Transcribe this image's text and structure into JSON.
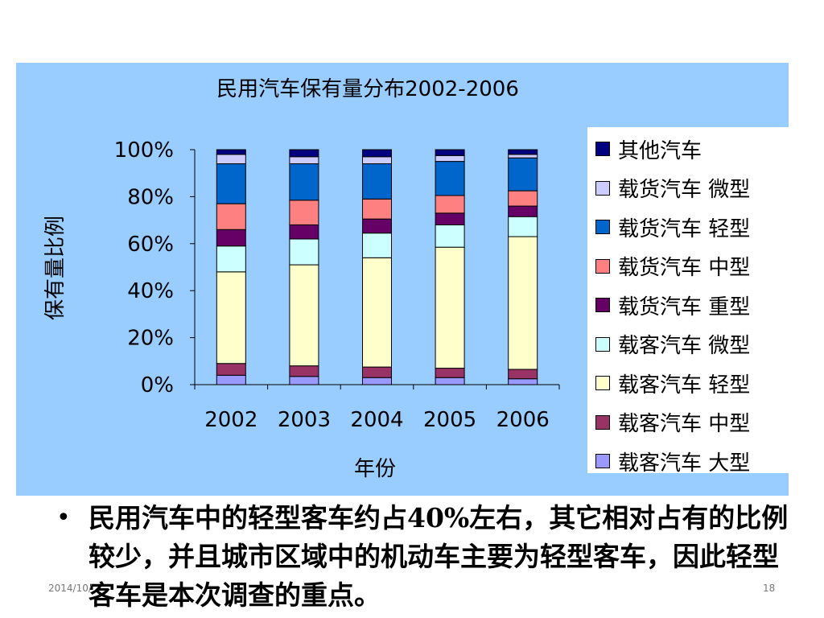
{
  "chart_data": {
    "type": "bar",
    "stacked": "percent",
    "title": "民用汽车保有量分布2002-2006",
    "xlabel": "年份",
    "ylabel": "保有量比例",
    "categories": [
      "2002",
      "2003",
      "2004",
      "2005",
      "2006"
    ],
    "ylim": [
      0,
      100
    ],
    "yticks": [
      "0%",
      "20%",
      "40%",
      "60%",
      "80%",
      "100%"
    ],
    "legend_position": "right",
    "series": [
      {
        "name": "载客汽车 大型",
        "color": "#9999ff",
        "values": [
          4,
          3.5,
          3,
          3,
          2.5
        ]
      },
      {
        "name": "载客汽车 中型",
        "color": "#993366",
        "values": [
          5,
          4.5,
          4.5,
          4,
          4
        ]
      },
      {
        "name": "载客汽车 轻型",
        "color": "#ffffcc",
        "values": [
          39,
          43,
          46.5,
          51.5,
          56.5
        ]
      },
      {
        "name": "载客汽车 微型",
        "color": "#ccffff",
        "values": [
          11,
          11,
          10.5,
          9.5,
          8.5
        ]
      },
      {
        "name": "载货汽车 重型",
        "color": "#660066",
        "values": [
          7,
          6,
          6,
          5,
          4.5
        ]
      },
      {
        "name": "载货汽车 中型",
        "color": "#ff8080",
        "values": [
          11,
          10.5,
          8.5,
          7.5,
          6.5
        ]
      },
      {
        "name": "载货汽车 轻型",
        "color": "#0066cc",
        "values": [
          17,
          15.5,
          15,
          14.5,
          14
        ]
      },
      {
        "name": "载货汽车 微型",
        "color": "#ccccff",
        "values": [
          4,
          3,
          3,
          2.5,
          1.5
        ]
      },
      {
        "name": "其他汽车",
        "color": "#000080",
        "values": [
          2,
          3,
          3,
          2.5,
          2
        ]
      }
    ]
  },
  "colors": {
    "panel_background": "#99ccff"
  },
  "bullet": {
    "symbol": "•",
    "text": "民用汽车中的轻型客车约占40%左右，其它相对占有的比例较少，并且城市区域中的机动车主要为轻型客车，因此轻型客车是本次调查的重点。"
  },
  "footer": {
    "date": "2014/10/",
    "page": "18"
  }
}
